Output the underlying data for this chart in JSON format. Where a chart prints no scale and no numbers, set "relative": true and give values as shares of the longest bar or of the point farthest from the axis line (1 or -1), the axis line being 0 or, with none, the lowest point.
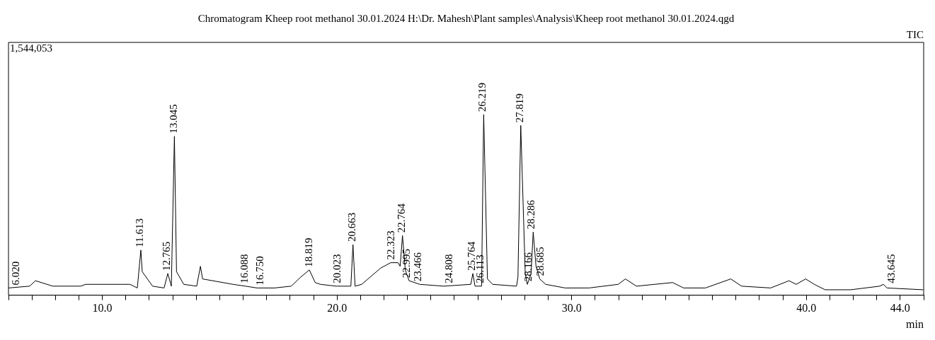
{
  "chart_data": {
    "type": "line",
    "title": "Chromatogram Kheep root methanol 30.01.2024 H:\\Dr. Mahesh\\Plant samples\\Analysis\\Kheep root methanol 30.01.2024.qgd",
    "xlabel": "min",
    "relative": true,
    "grid": false,
    "legend": false,
    "marker": "none",
    "line_style": "solid",
    "tick_labels": "x",
    "xlim": [
      6,
      45
    ],
    "xticks": [
      {
        "value": 6,
        "label": null
      },
      {
        "value": 7,
        "label": null
      },
      {
        "value": 8,
        "label": null
      },
      {
        "value": 9,
        "label": null
      },
      {
        "value": 10,
        "label": "10.0"
      },
      {
        "value": 11,
        "label": null
      },
      {
        "value": 12,
        "label": null
      },
      {
        "value": 13,
        "label": null
      },
      {
        "value": 14,
        "label": null
      },
      {
        "value": 15,
        "label": null
      },
      {
        "value": 16,
        "label": null
      },
      {
        "value": 17,
        "label": null
      },
      {
        "value": 18,
        "label": null
      },
      {
        "value": 19,
        "label": null
      },
      {
        "value": 20,
        "label": "20.0"
      },
      {
        "value": 21,
        "label": null
      },
      {
        "value": 22,
        "label": null
      },
      {
        "value": 23,
        "label": null
      },
      {
        "value": 24,
        "label": null
      },
      {
        "value": 25,
        "label": null
      },
      {
        "value": 26,
        "label": null
      },
      {
        "value": 27,
        "label": null
      },
      {
        "value": 28,
        "label": null
      },
      {
        "value": 29,
        "label": null
      },
      {
        "value": 30,
        "label": "30.0"
      },
      {
        "value": 31,
        "label": null
      },
      {
        "value": 32,
        "label": null
      },
      {
        "value": 33,
        "label": null
      },
      {
        "value": 34,
        "label": null
      },
      {
        "value": 35,
        "label": null
      },
      {
        "value": 36,
        "label": null
      },
      {
        "value": 37,
        "label": null
      },
      {
        "value": 38,
        "label": null
      },
      {
        "value": 39,
        "label": null
      },
      {
        "value": 40,
        "label": "40.0"
      },
      {
        "value": 41,
        "label": null
      },
      {
        "value": 42,
        "label": null
      },
      {
        "value": 43,
        "label": null
      },
      {
        "value": 44,
        "label": "44.0"
      },
      {
        "value": 45,
        "label": null
      }
    ],
    "series": [
      {
        "color": "#000000",
        "x": [
          6.0,
          6.9,
          7.15,
          7.89,
          9.07,
          9.29,
          10.77,
          11.18,
          11.49,
          11.64,
          11.7,
          12.14,
          12.63,
          12.79,
          12.94,
          13.07,
          13.16,
          13.47,
          14.02,
          14.18,
          14.27,
          15.57,
          16.1,
          16.59,
          17.34,
          18.05,
          18.45,
          18.82,
          19.07,
          19.29,
          19.97,
          20.59,
          20.68,
          20.77,
          21.05,
          21.86,
          22.29,
          22.6,
          22.69,
          22.79,
          22.91,
          23.07,
          23.53,
          24.55,
          25.7,
          25.79,
          25.88,
          26.16,
          26.25,
          26.41,
          26.63,
          27.65,
          27.71,
          27.83,
          28.02,
          28.11,
          28.27,
          28.36,
          28.48,
          28.64,
          28.89,
          29.72,
          30.74,
          31.98,
          32.29,
          32.76,
          34.3,
          34.77,
          35.7,
          36.78,
          37.24,
          38.48,
          39.26,
          39.57,
          39.97,
          40.34,
          40.8,
          41.89,
          43.13,
          43.28,
          43.44,
          44.98
        ],
        "values": [
          0.04,
          0.05,
          0.08,
          0.05,
          0.05,
          0.06,
          0.06,
          0.06,
          0.04,
          0.25,
          0.13,
          0.05,
          0.04,
          0.12,
          0.05,
          0.88,
          0.13,
          0.06,
          0.05,
          0.16,
          0.09,
          0.06,
          0.05,
          0.04,
          0.04,
          0.05,
          0.1,
          0.14,
          0.07,
          0.06,
          0.05,
          0.05,
          0.28,
          0.05,
          0.06,
          0.15,
          0.18,
          0.18,
          0.16,
          0.33,
          0.14,
          0.08,
          0.06,
          0.05,
          0.06,
          0.12,
          0.05,
          0.05,
          1,
          0.09,
          0.06,
          0.05,
          0.1,
          0.94,
          0.12,
          0.06,
          0.12,
          0.35,
          0.16,
          0.09,
          0.06,
          0.04,
          0.04,
          0.06,
          0.09,
          0.05,
          0.07,
          0.04,
          0.04,
          0.09,
          0.05,
          0.04,
          0.08,
          0.06,
          0.09,
          0.06,
          0.03,
          0.03,
          0.05,
          0.06,
          0.04,
          0.03
        ]
      }
    ],
    "annotations": [
      "1,544,053",
      "TIC",
      {
        "text": "6.020",
        "x": 6.02,
        "y": 0.04
      },
      {
        "text": "11.613",
        "x": 11.613,
        "y": 0.25
      },
      {
        "text": "12.765",
        "x": 12.765,
        "y": 0.12
      },
      {
        "text": "13.045",
        "x": 13.045,
        "y": 0.88
      },
      {
        "text": "16.088",
        "x": 16.088,
        "y": 0.05
      },
      {
        "text": "16.750",
        "x": 16.75,
        "y": 0.04
      },
      {
        "text": "18.819",
        "x": 18.819,
        "y": 0.14
      },
      {
        "text": "20.023",
        "x": 20.023,
        "y": 0.05
      },
      {
        "text": "20.663",
        "x": 20.663,
        "y": 0.28
      },
      {
        "text": "22.323",
        "x": 22.323,
        "y": 0.18
      },
      {
        "text": "22.764",
        "x": 22.764,
        "y": 0.33
      },
      {
        "text": "22.995",
        "x": 22.995,
        "y": 0.08
      },
      {
        "text": "23.466",
        "x": 23.466,
        "y": 0.06
      },
      {
        "text": "24.808",
        "x": 24.808,
        "y": 0.05
      },
      {
        "text": "25.764",
        "x": 25.764,
        "y": 0.12
      },
      {
        "text": "26.113",
        "x": 26.113,
        "y": 0.05
      },
      {
        "text": "26.219",
        "x": 26.219,
        "y": 1
      },
      {
        "text": "27.819",
        "x": 27.819,
        "y": 0.94
      },
      {
        "text": "28.166",
        "x": 28.166,
        "y": 0.06
      },
      {
        "text": "28.286",
        "x": 28.286,
        "y": 0.35
      },
      {
        "text": "28.685",
        "x": 28.685,
        "y": 0.09
      },
      {
        "text": "43.645",
        "x": 43.645,
        "y": 0.05
      }
    ]
  }
}
